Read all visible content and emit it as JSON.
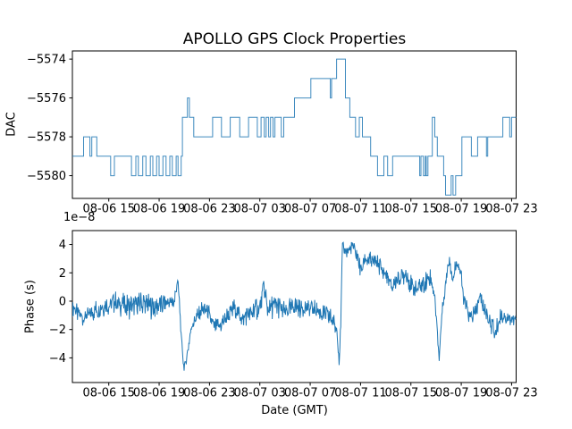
{
  "figure": {
    "background": "#ffffff",
    "line_color": "#1f77b4",
    "axes_color": "#000000",
    "text_color": "#000000"
  },
  "chart_data": [
    {
      "type": "line",
      "subtype": "step",
      "title": "APOLLO GPS Clock Properties",
      "ylabel": "DAC",
      "xlabel": "",
      "grid": false,
      "legend": "none",
      "ylim": [
        -5581.17,
        -5573.58
      ],
      "yticks": [
        -5574,
        -5576,
        -5578,
        -5580
      ],
      "ytick_labels": [
        "−5574",
        "−5576",
        "−5578",
        "−5580"
      ],
      "xlim_hours": [
        0.11,
        35.36
      ],
      "xtick_hours": [
        3,
        7,
        11,
        15,
        19,
        23,
        27,
        31,
        35
      ],
      "xtick_labels": [
        "08-06 15",
        "08-06 19",
        "08-06 23",
        "08-07 03",
        "08-07 07",
        "08-07 11",
        "08-07 15",
        "08-07 19",
        "08-07 23"
      ],
      "steps_hours_dac": [
        [
          0.11,
          -5579
        ],
        [
          1.0,
          -5578
        ],
        [
          1.5,
          -5579
        ],
        [
          1.65,
          -5578
        ],
        [
          2.05,
          -5579
        ],
        [
          3.15,
          -5580
        ],
        [
          3.45,
          -5579
        ],
        [
          4.8,
          -5580
        ],
        [
          5.15,
          -5579
        ],
        [
          5.35,
          -5580
        ],
        [
          5.7,
          -5579
        ],
        [
          5.95,
          -5580
        ],
        [
          6.3,
          -5579
        ],
        [
          6.5,
          -5580
        ],
        [
          6.8,
          -5579
        ],
        [
          7.0,
          -5580
        ],
        [
          7.3,
          -5579
        ],
        [
          7.55,
          -5580
        ],
        [
          7.85,
          -5579
        ],
        [
          8.05,
          -5580
        ],
        [
          8.35,
          -5579
        ],
        [
          8.5,
          -5580
        ],
        [
          8.75,
          -5579
        ],
        [
          8.85,
          -5577
        ],
        [
          9.25,
          -5576
        ],
        [
          9.4,
          -5577
        ],
        [
          9.75,
          -5578
        ],
        [
          11.25,
          -5577
        ],
        [
          11.95,
          -5578
        ],
        [
          12.65,
          -5577
        ],
        [
          13.4,
          -5578
        ],
        [
          14.1,
          -5577
        ],
        [
          14.8,
          -5578
        ],
        [
          15.1,
          -5577
        ],
        [
          15.35,
          -5578
        ],
        [
          15.5,
          -5577
        ],
        [
          15.7,
          -5578
        ],
        [
          15.85,
          -5577
        ],
        [
          16.05,
          -5578
        ],
        [
          16.2,
          -5577
        ],
        [
          16.7,
          -5578
        ],
        [
          16.9,
          -5577
        ],
        [
          17.75,
          -5576
        ],
        [
          19.05,
          -5575
        ],
        [
          20.6,
          -5576
        ],
        [
          20.7,
          -5575
        ],
        [
          21.1,
          -5574
        ],
        [
          21.8,
          -5576
        ],
        [
          22.15,
          -5577
        ],
        [
          22.6,
          -5578
        ],
        [
          22.9,
          -5577
        ],
        [
          23.15,
          -5578
        ],
        [
          23.8,
          -5579
        ],
        [
          24.35,
          -5580
        ],
        [
          24.85,
          -5579
        ],
        [
          25.15,
          -5580
        ],
        [
          25.55,
          -5579
        ],
        [
          27.7,
          -5580
        ],
        [
          27.8,
          -5579
        ],
        [
          28.0,
          -5580
        ],
        [
          28.15,
          -5579
        ],
        [
          28.22,
          -5580
        ],
        [
          28.35,
          -5579
        ],
        [
          28.7,
          -5577
        ],
        [
          28.9,
          -5578
        ],
        [
          29.1,
          -5579
        ],
        [
          29.6,
          -5580
        ],
        [
          29.75,
          -5581
        ],
        [
          30.2,
          -5580
        ],
        [
          30.35,
          -5581
        ],
        [
          30.55,
          -5580
        ],
        [
          31.05,
          -5578
        ],
        [
          31.8,
          -5579
        ],
        [
          32.3,
          -5578
        ],
        [
          33.0,
          -5579
        ],
        [
          33.1,
          -5578
        ],
        [
          34.3,
          -5577
        ],
        [
          34.85,
          -5578
        ],
        [
          35.0,
          -5577
        ]
      ]
    },
    {
      "type": "line",
      "subtype": "noisy",
      "title": "",
      "ylabel": "Phase (s)",
      "xlabel": "Date (GMT)",
      "offset_text": "1e−8",
      "grid": false,
      "legend": "none",
      "ylim": [
        -5.74,
        4.98
      ],
      "yticks": [
        4,
        2,
        0,
        -2,
        -4
      ],
      "ytick_labels": [
        "4",
        "2",
        "0",
        "−2",
        "−4"
      ],
      "xlim_hours": [
        0.11,
        35.36
      ],
      "xtick_hours": [
        3,
        7,
        11,
        15,
        19,
        23,
        27,
        31,
        35
      ],
      "xtick_labels": [
        "08-06 15",
        "08-06 19",
        "08-06 23",
        "08-07 03",
        "08-07 07",
        "08-07 11",
        "08-07 15",
        "08-07 19",
        "08-07 23"
      ],
      "anchors_hours_mean_amp": [
        [
          0.11,
          -0.4,
          0.5
        ],
        [
          0.9,
          -1.2,
          0.5
        ],
        [
          2.0,
          -0.6,
          0.55
        ],
        [
          3.0,
          -0.2,
          0.6
        ],
        [
          3.6,
          -0.1,
          0.65
        ],
        [
          4.5,
          -0.4,
          0.7
        ],
        [
          5.5,
          -0.1,
          0.7
        ],
        [
          6.5,
          -0.4,
          0.7
        ],
        [
          7.5,
          -0.2,
          0.65
        ],
        [
          8.2,
          -0.1,
          0.6
        ],
        [
          8.45,
          1.6,
          0.4
        ],
        [
          8.6,
          0.2,
          0.3
        ],
        [
          8.75,
          -2.5,
          0.3
        ],
        [
          8.95,
          -4.6,
          0.25
        ],
        [
          9.1,
          -4.5,
          0.3
        ],
        [
          9.35,
          -3.0,
          0.35
        ],
        [
          9.6,
          -1.7,
          0.4
        ],
        [
          10.0,
          -1.1,
          0.5
        ],
        [
          10.4,
          -0.7,
          0.55
        ],
        [
          10.8,
          -0.6,
          0.55
        ],
        [
          11.3,
          -1.7,
          0.5
        ],
        [
          11.8,
          -1.8,
          0.5
        ],
        [
          12.2,
          -1.3,
          0.55
        ],
        [
          13.0,
          -0.5,
          0.6
        ],
        [
          13.6,
          -1.2,
          0.6
        ],
        [
          14.3,
          -0.8,
          0.65
        ],
        [
          15.0,
          -0.4,
          0.7
        ],
        [
          15.35,
          1.0,
          0.8
        ],
        [
          15.6,
          -0.5,
          0.65
        ],
        [
          16.4,
          -0.3,
          0.7
        ],
        [
          17.0,
          -0.8,
          0.6
        ],
        [
          17.8,
          -0.4,
          0.65
        ],
        [
          19.0,
          -0.5,
          0.6
        ],
        [
          20.0,
          -0.8,
          0.6
        ],
        [
          20.8,
          -1.3,
          0.55
        ],
        [
          21.15,
          -2.2,
          0.4
        ],
        [
          21.3,
          -4.4,
          0.25
        ],
        [
          21.45,
          -1.0,
          0.3
        ],
        [
          21.55,
          3.8,
          0.3
        ],
        [
          21.9,
          3.5,
          0.5
        ],
        [
          22.4,
          3.9,
          0.45
        ],
        [
          22.75,
          3.1,
          0.5
        ],
        [
          23.05,
          2.0,
          0.5
        ],
        [
          23.3,
          3.0,
          0.5
        ],
        [
          23.8,
          2.8,
          0.5
        ],
        [
          24.3,
          2.7,
          0.55
        ],
        [
          24.75,
          2.2,
          0.55
        ],
        [
          25.2,
          1.5,
          0.55
        ],
        [
          25.5,
          0.8,
          0.5
        ],
        [
          25.85,
          1.6,
          0.55
        ],
        [
          26.2,
          1.5,
          0.55
        ],
        [
          26.55,
          2.1,
          0.55
        ],
        [
          27.0,
          1.1,
          0.55
        ],
        [
          27.45,
          0.8,
          0.55
        ],
        [
          27.95,
          1.2,
          0.6
        ],
        [
          28.55,
          1.7,
          0.6
        ],
        [
          28.85,
          0.6,
          0.5
        ],
        [
          29.05,
          -1.5,
          0.4
        ],
        [
          29.25,
          -4.0,
          0.3
        ],
        [
          29.45,
          -1.0,
          0.35
        ],
        [
          29.8,
          1.5,
          0.4
        ],
        [
          30.05,
          3.0,
          0.45
        ],
        [
          30.35,
          1.6,
          0.5
        ],
        [
          30.65,
          3.0,
          0.45
        ],
        [
          30.95,
          2.0,
          0.45
        ],
        [
          31.2,
          0.2,
          0.5
        ],
        [
          31.65,
          -1.2,
          0.55
        ],
        [
          32.1,
          -0.9,
          0.55
        ],
        [
          32.55,
          0.3,
          0.6
        ],
        [
          32.85,
          -0.6,
          0.6
        ],
        [
          33.25,
          -1.3,
          0.55
        ],
        [
          33.7,
          -2.3,
          0.5
        ],
        [
          34.15,
          -0.9,
          0.55
        ],
        [
          34.6,
          -1.2,
          0.5
        ],
        [
          35.36,
          -1.4,
          0.5
        ]
      ]
    }
  ]
}
